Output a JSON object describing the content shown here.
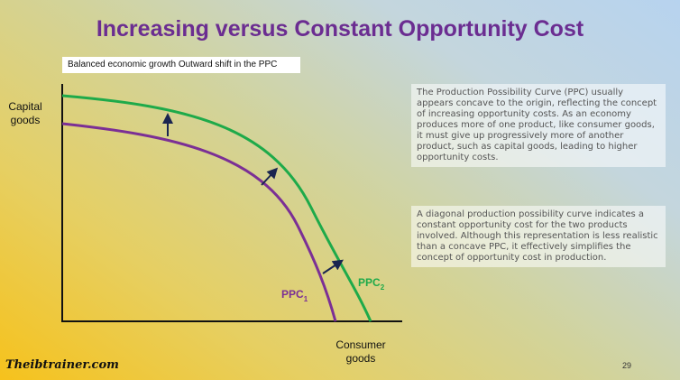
{
  "header": {
    "title": "Increasing versus Constant Opportunity Cost"
  },
  "caption": "Balanced economic growth Outward shift in the PPC",
  "diagram": {
    "y_axis_label": [
      "Capital",
      "goods"
    ],
    "x_axis_label": [
      "Consumer",
      "goods"
    ],
    "curves": [
      {
        "label": "PPC",
        "subscript": "1"
      },
      {
        "label": "PPC",
        "subscript": "2"
      }
    ]
  },
  "notes": [
    "The Production Possibility Curve (PPC) usually appears concave to the origin, reflecting the concept of increasing opportunity costs. As an economy produces more of one product, like consumer goods, it must give up progressively more of another product, such as capital goods, leading to higher opportunity costs.",
    "A diagonal production possibility curve indicates a constant opportunity cost for the two products involved. Although this representation is less realistic than a concave PPC, it effectively simplifies the concept of opportunity cost in production."
  ],
  "footer": {
    "logo": "Theibtrainer.com",
    "page_number": "29"
  }
}
